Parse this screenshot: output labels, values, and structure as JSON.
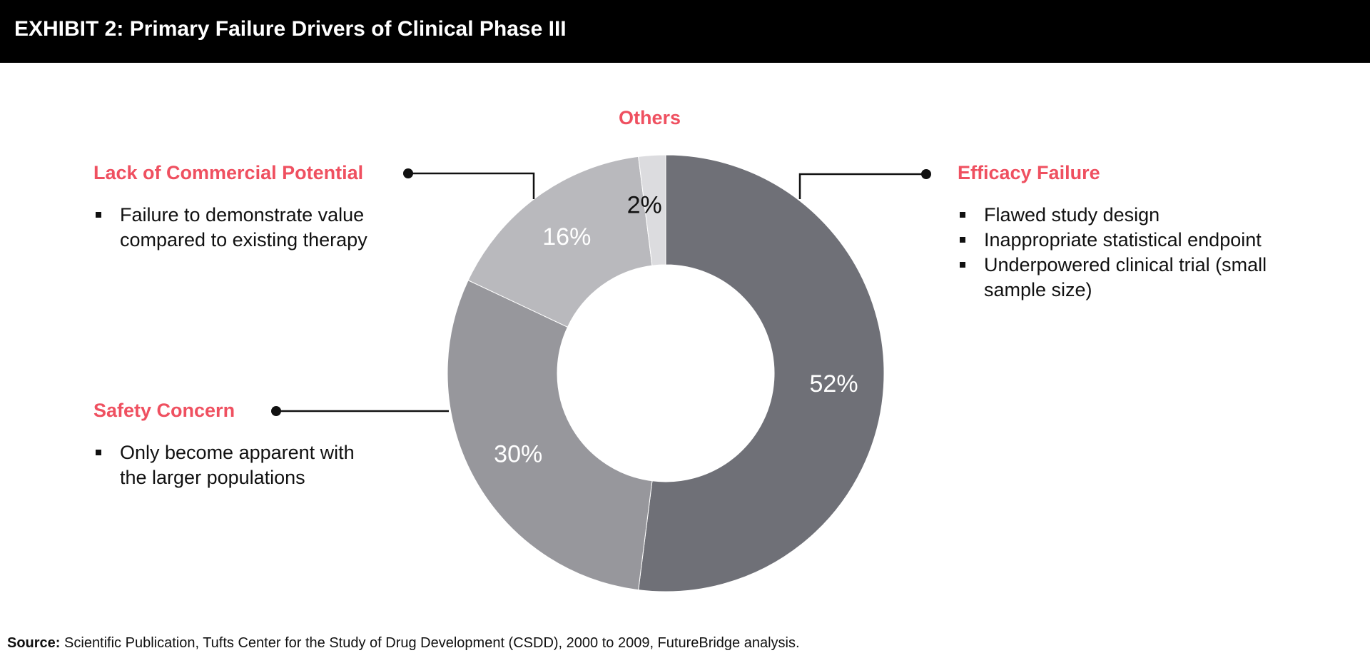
{
  "header": {
    "title": "EXHIBIT 2: Primary Failure Drivers of Clinical Phase III"
  },
  "chart_data": {
    "type": "pie",
    "title": "Primary Failure Drivers of Clinical Phase III",
    "slices": [
      {
        "label": "Efficacy Failure",
        "value": 52,
        "display": "52%",
        "color": "#6f7077",
        "label_color": "#ffffff"
      },
      {
        "label": "Safety Concern",
        "value": 30,
        "display": "30%",
        "color": "#97979c",
        "label_color": "#ffffff"
      },
      {
        "label": "Lack of Commercial Potential",
        "value": 16,
        "display": "16%",
        "color": "#b9b9bd",
        "label_color": "#ffffff"
      },
      {
        "label": "Others",
        "value": 2,
        "display": "2%",
        "color": "#dcdcdf",
        "label_color": "#111111"
      }
    ]
  },
  "categories": {
    "efficacy": {
      "title": "Efficacy Failure",
      "bullets": [
        "Flawed study design",
        "Inappropriate statistical endpoint",
        "Underpowered clinical trial (small sample size)"
      ]
    },
    "commercial": {
      "title": "Lack of Commercial Potential",
      "bullets": [
        "Failure to demonstrate value compared to existing therapy"
      ]
    },
    "safety": {
      "title": "Safety Concern",
      "bullets": [
        "Only become apparent with the larger populations"
      ]
    },
    "others": {
      "title": "Others"
    }
  },
  "source": {
    "label": "Source:",
    "text": "Scientific Publication, Tufts Center for the Study of Drug Development (CSDD), 2000 to 2009, FutureBridge analysis."
  },
  "colors": {
    "accent": "#ef5060",
    "header_bg": "#000000"
  }
}
